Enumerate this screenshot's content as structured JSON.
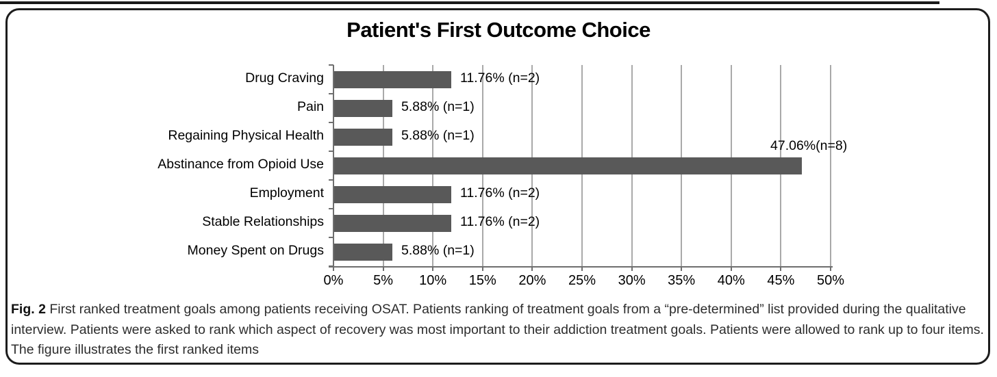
{
  "figure": {
    "caption": {
      "label": "Fig. 2",
      "text": " First ranked treatment goals among patients receiving OSAT. Patients ranking of treatment goals from a “pre-determined” list provided during the qualitative interview. Patients were asked to rank which aspect of recovery was most important to their addiction treatment goals. Patients were allowed to rank up to four items. The figure illustrates the first ranked items"
    }
  },
  "chart_data": {
    "type": "bar",
    "orientation": "horizontal",
    "title": "Patient's First Outcome Choice",
    "categories": [
      "Drug Craving",
      "Pain",
      "Regaining Physical Health",
      "Abstinance from Opioid Use",
      "Employment",
      "Stable Relationships",
      "Money Spent on Drugs"
    ],
    "values": [
      11.76,
      5.88,
      5.88,
      47.06,
      11.76,
      11.76,
      5.88
    ],
    "counts": [
      2,
      1,
      1,
      8,
      2,
      2,
      1
    ],
    "data_labels": [
      "11.76% (n=2)",
      "5.88% (n=1)",
      "5.88% (n=1)",
      "47.06%(n=8)",
      "11.76% (n=2)",
      "11.76% (n=2)",
      "5.88% (n=1)"
    ],
    "data_label_positions": [
      "right",
      "right",
      "right",
      "above",
      "right",
      "right",
      "right"
    ],
    "x_tick_labels": [
      "0%",
      "5%",
      "10%",
      "15%",
      "20%",
      "25%",
      "30%",
      "35%",
      "40%",
      "45%",
      "50%"
    ],
    "xlim": [
      0,
      50
    ],
    "x_tick_step": 5,
    "grid": "vertical",
    "legend": "none",
    "bar_color": "#595959",
    "gridline_color": "#a9a9a9",
    "axis_color": "#6e6e6e"
  }
}
